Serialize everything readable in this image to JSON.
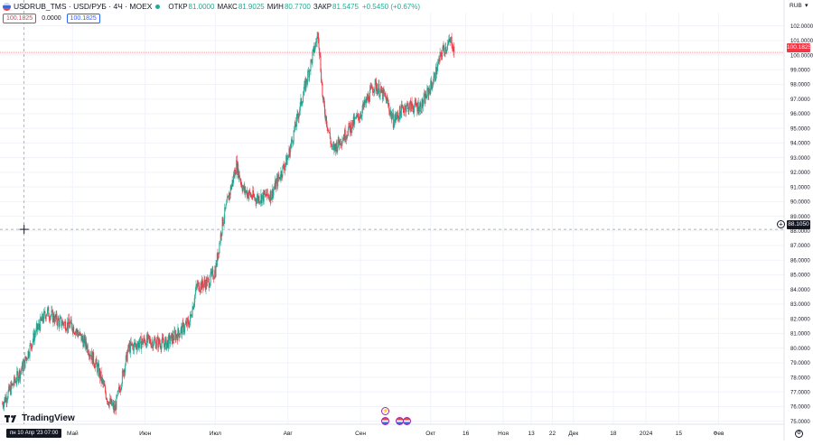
{
  "header": {
    "symbol": "USDRUB_TMS · USD/РУБ · 4Ч · MOEX",
    "open_label": "ОТКР",
    "open": "81.0000",
    "high_label": "МАКС",
    "high": "81.9025",
    "low_label": "МИН",
    "low": "80.7700",
    "close_label": "ЗАКР",
    "close": "81.5475",
    "change": "+0.5450 (+0.67%)",
    "sell_price": "100.1825",
    "spread": "0.0000",
    "buy_price": "100.1825"
  },
  "axis": {
    "currency": "RUB",
    "last_price_label": "100.1825",
    "crosshair_price_label": "88.1050",
    "crosshair_date_label": "пн 10 Апр '23   07:00"
  },
  "branding": {
    "logo_text": "TradingView"
  },
  "icons": {
    "symbol_flag": "us-ru-flag-icon",
    "status": "market-status-dot-icon",
    "settings": "gear-icon",
    "add_alert": "plus-circle-icon",
    "events": [
      "lightning-icon",
      "us-flag-icon",
      "us-flag-icon"
    ]
  },
  "colors": {
    "up": "#22ab94",
    "down": "#f23645",
    "grid": "#f0f3fa",
    "crosshair": "#9598a1",
    "last_price": "#f23645"
  },
  "chart_data": {
    "type": "candlestick",
    "y_ticks": [
      "75.0000",
      "76.0000",
      "77.0000",
      "78.0000",
      "79.0000",
      "80.0000",
      "81.0000",
      "82.0000",
      "83.0000",
      "84.0000",
      "85.0000",
      "86.0000",
      "87.0000",
      "88.0000",
      "89.0000",
      "90.0000",
      "91.0000",
      "92.0000",
      "93.0000",
      "94.0000",
      "95.0000",
      "96.0000",
      "97.0000",
      "98.0000",
      "99.0000",
      "100.0000",
      "101.0000",
      "102.0000"
    ],
    "ylim": [
      74.8,
      102.9
    ],
    "last_price": 100.1825,
    "crosshair_price": 88.105,
    "x_ticks": [
      "Май",
      "Июн",
      "Июл",
      "Авг",
      "Сен",
      "Окт",
      "16",
      "Ноя",
      "13",
      "22",
      "Дек",
      "18",
      "2024",
      "15",
      "Фев"
    ],
    "grid": true,
    "key_points": [
      {
        "t": "2023-04-01",
        "price": 76.2
      },
      {
        "t": "2023-04-10",
        "price": 78.8
      },
      {
        "t": "2023-04-15",
        "price": 81.0
      },
      {
        "t": "2023-04-20",
        "price": 82.5
      },
      {
        "t": "2023-04-25",
        "price": 81.8
      },
      {
        "t": "2023-05-01",
        "price": 81.5
      },
      {
        "t": "2023-05-07",
        "price": 80.2
      },
      {
        "t": "2023-05-12",
        "price": 78.5
      },
      {
        "t": "2023-05-16",
        "price": 76.5
      },
      {
        "t": "2023-05-19",
        "price": 75.8
      },
      {
        "t": "2023-05-25",
        "price": 80.0
      },
      {
        "t": "2023-06-01",
        "price": 80.5
      },
      {
        "t": "2023-06-10",
        "price": 80.3
      },
      {
        "t": "2023-06-15",
        "price": 81.0
      },
      {
        "t": "2023-06-20",
        "price": 81.8
      },
      {
        "t": "2023-06-23",
        "price": 84.2
      },
      {
        "t": "2023-06-28",
        "price": 84.5
      },
      {
        "t": "2023-07-01",
        "price": 85.3
      },
      {
        "t": "2023-07-04",
        "price": 88.5
      },
      {
        "t": "2023-07-10",
        "price": 92.5
      },
      {
        "t": "2023-07-13",
        "price": 90.8
      },
      {
        "t": "2023-07-18",
        "price": 90.2
      },
      {
        "t": "2023-07-25",
        "price": 90.5
      },
      {
        "t": "2023-08-01",
        "price": 93.0
      },
      {
        "t": "2023-08-07",
        "price": 97.0
      },
      {
        "t": "2023-08-14",
        "price": 101.5
      },
      {
        "t": "2023-08-16",
        "price": 96.8
      },
      {
        "t": "2023-08-20",
        "price": 93.5
      },
      {
        "t": "2023-08-25",
        "price": 94.5
      },
      {
        "t": "2023-09-01",
        "price": 96.0
      },
      {
        "t": "2023-09-07",
        "price": 98.0
      },
      {
        "t": "2023-09-12",
        "price": 97.0
      },
      {
        "t": "2023-09-15",
        "price": 95.5
      },
      {
        "t": "2023-09-20",
        "price": 96.5
      },
      {
        "t": "2023-09-27",
        "price": 96.5
      },
      {
        "t": "2023-10-02",
        "price": 98.2
      },
      {
        "t": "2023-10-06",
        "price": 100.3
      },
      {
        "t": "2023-10-10",
        "price": 101.0
      },
      {
        "t": "2023-10-11",
        "price": 100.18
      }
    ]
  }
}
